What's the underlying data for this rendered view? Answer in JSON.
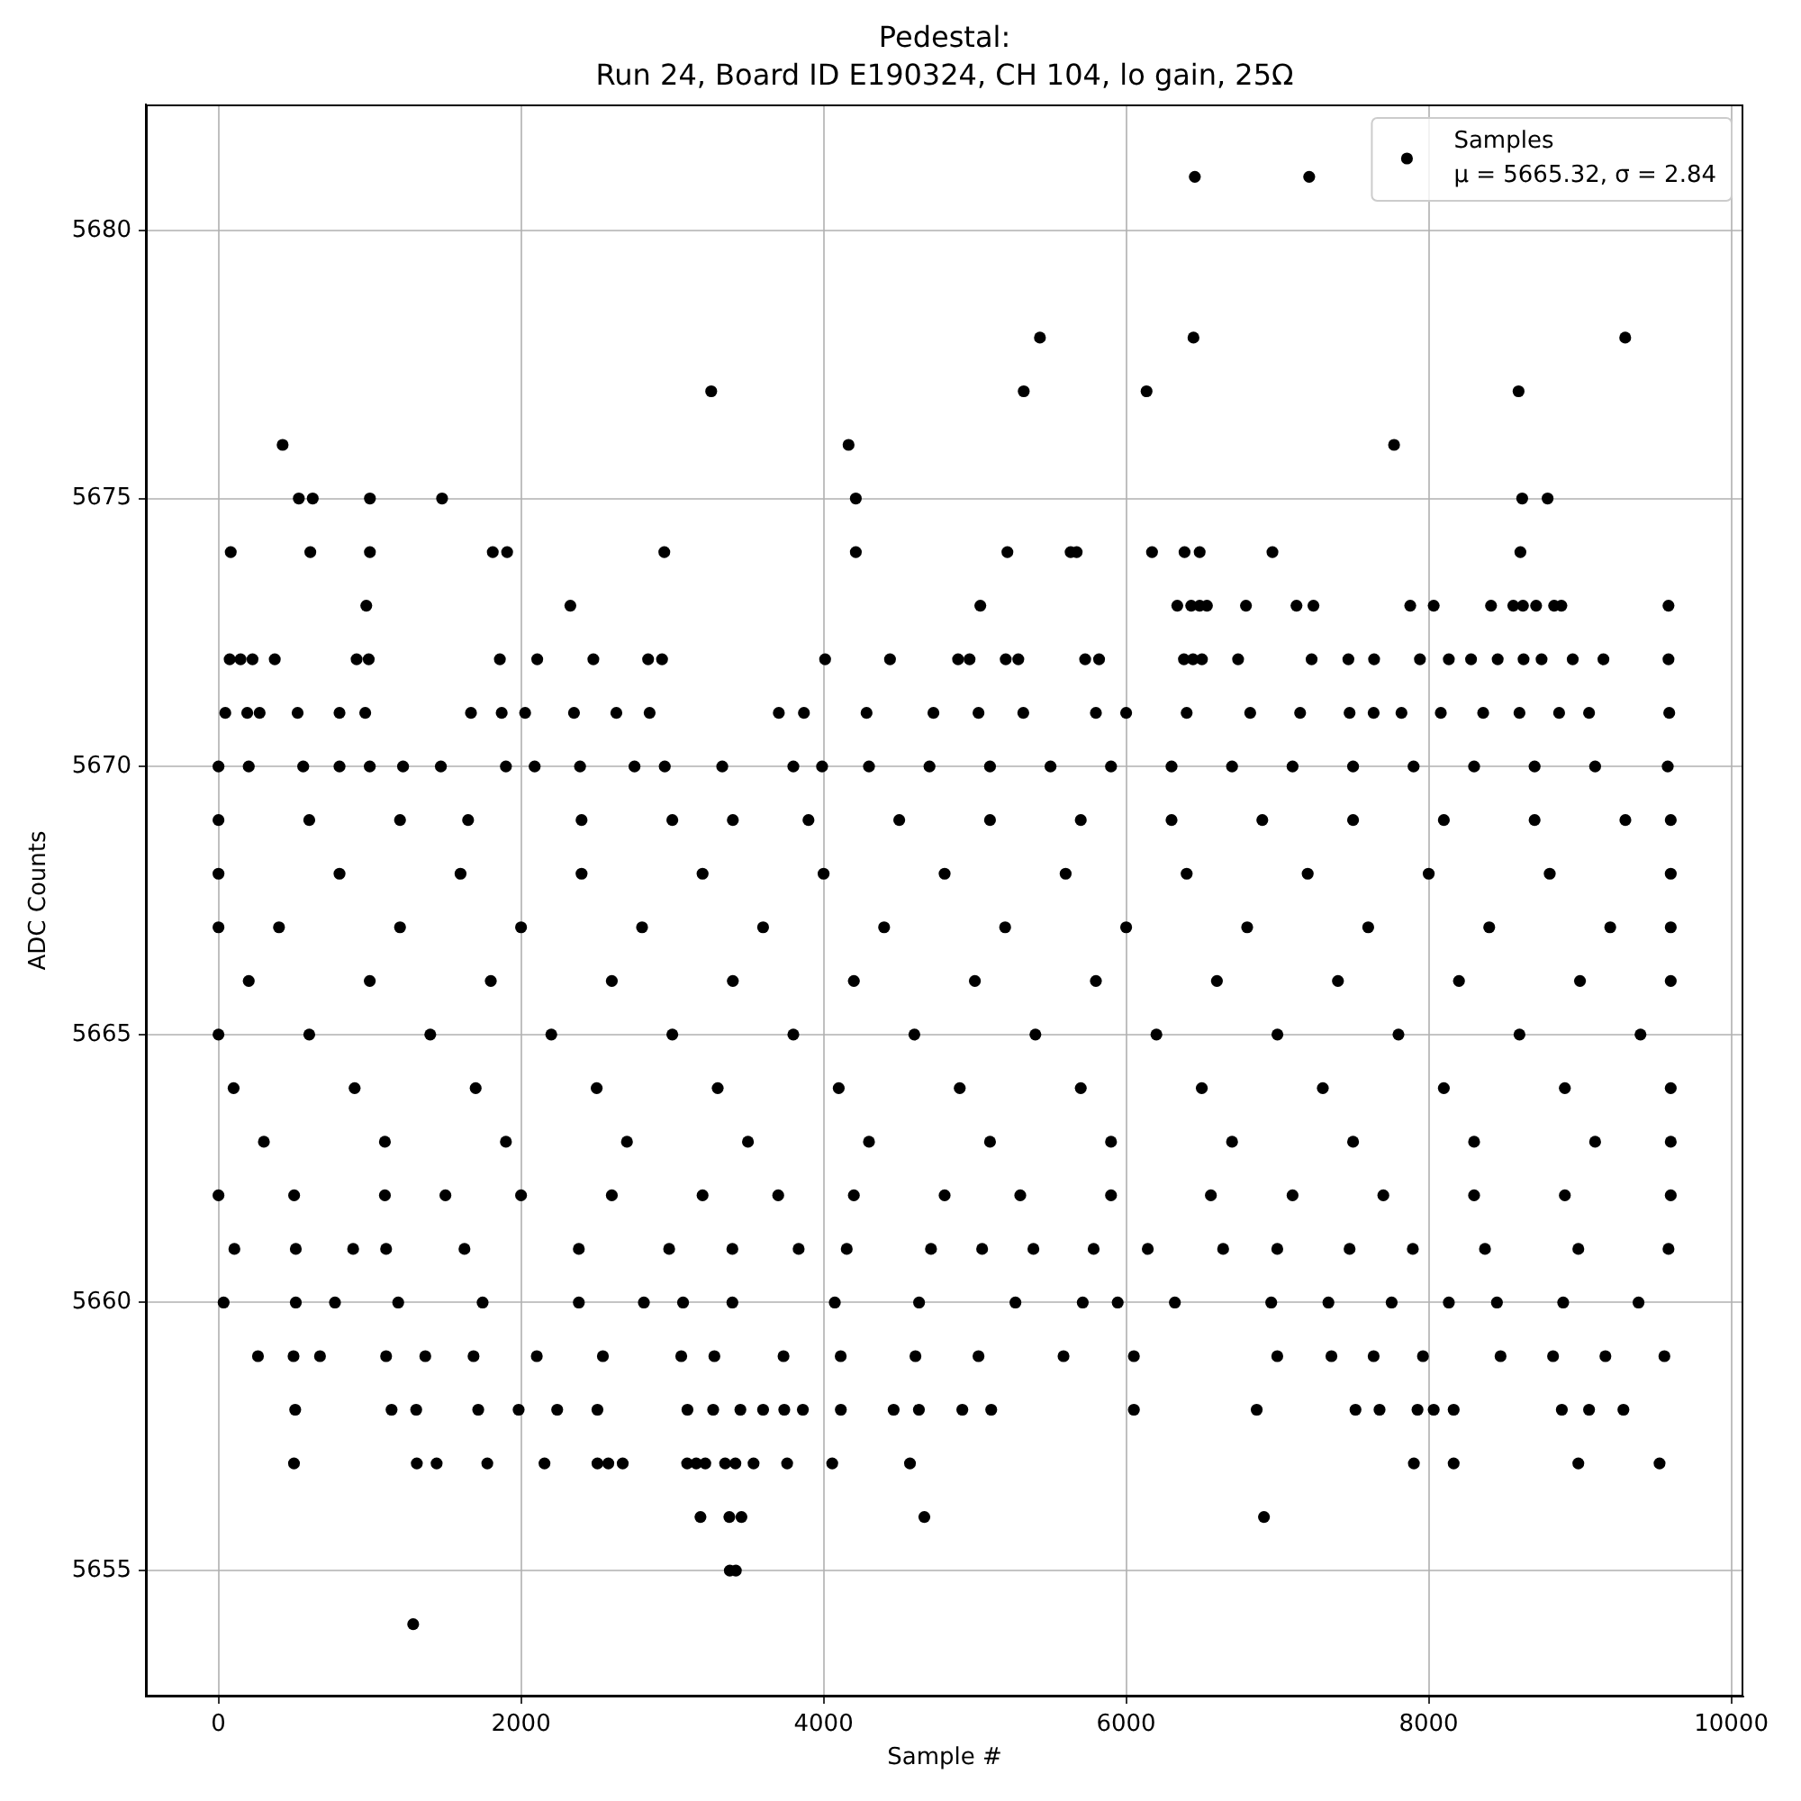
{
  "chart_data": {
    "type": "scatter",
    "title": "Pedestal:\nRun 24, Board ID E190324, CH 104, lo gain, 25Ω",
    "xlabel": "Sample #",
    "ylabel": "ADC Counts",
    "xlim": [
      -480,
      10080
    ],
    "ylim": [
      5652.65,
      5682.35
    ],
    "xticks": [
      0,
      2000,
      4000,
      6000,
      8000,
      10000
    ],
    "yticks": [
      5655,
      5660,
      5665,
      5670,
      5675,
      5680
    ],
    "grid": true,
    "legend": "top right",
    "marker": "circle",
    "series": [
      {
        "name": "Samples\nμ = 5665.32, σ = 2.84",
        "color": "#000000",
        "x": [
          6454,
          7210,
          5430,
          6445,
          9299,
          3257,
          5323,
          6135,
          8594,
          424,
          4165,
          7771,
          531,
          623,
          1001,
          1478,
          4213,
          8618,
          8786,
          81,
          607,
          1001,
          1813,
          1908,
          2947,
          4213,
          5215,
          5633,
          5673,
          6171,
          6386,
          6486,
          6967,
          8606,
          977,
          2326,
          5036,
          6338,
          6430,
          6486,
          6534,
          6792,
          7126,
          7238,
          7878,
          8033,
          8412,
          8559,
          8623,
          8710,
          8829,
          8877,
          9585,
          74,
          146,
          225,
          372,
          913,
          993,
          1860,
          2107,
          2478,
          2840,
          2932,
          4010,
          4439,
          4889,
          4965,
          5204,
          5287,
          5729,
          5821,
          6382,
          6442,
          6501,
          6740,
          7226,
          7469,
          7639,
          7942,
          8133,
          8280,
          8456,
          8627,
          8746,
          8952,
          9155,
          9585,
          45,
          190,
          272,
          523,
          800,
          970,
          1669,
          1872,
          2027,
          2350,
          2630,
          2850,
          3704,
          3870,
          4284,
          4726,
          5024,
          5320,
          5800,
          6000,
          6400,
          6820,
          7150,
          7477,
          7636,
          7820,
          8080,
          8360,
          8600,
          8862,
          9060,
          9590,
          0,
          200,
          560,
          800,
          1000,
          1220,
          1470,
          1900,
          2090,
          2390,
          2750,
          2950,
          3330,
          3800,
          3990,
          4300,
          4700,
          5100,
          5500,
          5900,
          6300,
          6700,
          7100,
          7500,
          7900,
          8300,
          8700,
          9100,
          9580,
          0,
          600,
          1200,
          1650,
          2400,
          3000,
          3400,
          3900,
          4500,
          5100,
          5700,
          6300,
          6900,
          7500,
          8100,
          8700,
          9300,
          9600,
          0,
          800,
          1600,
          2400,
          3200,
          4000,
          4800,
          5600,
          6400,
          7200,
          8000,
          8800,
          9600,
          0,
          400,
          1200,
          2000,
          2800,
          3600,
          4400,
          5200,
          6000,
          6800,
          7600,
          8400,
          9200,
          9600,
          200,
          1000,
          1800,
          2600,
          3400,
          4200,
          5000,
          5800,
          6600,
          7400,
          8200,
          9000,
          9600,
          0,
          600,
          1400,
          2200,
          3000,
          3800,
          4600,
          5400,
          6200,
          7000,
          7800,
          8600,
          9400,
          100,
          900,
          1700,
          2500,
          3300,
          4100,
          4900,
          5700,
          6500,
          7300,
          8100,
          8900,
          9600,
          300,
          1100,
          1900,
          2700,
          3500,
          4300,
          5100,
          5900,
          6700,
          7500,
          8300,
          9100,
          9600,
          0,
          500,
          1100,
          1500,
          2000,
          2600,
          3200,
          3700,
          4200,
          4800,
          5300,
          5900,
          6560,
          7100,
          7700,
          8300,
          8900,
          9600,
          105,
          511,
          890,
          1108,
          1626,
          2382,
          2979,
          3397,
          3835,
          4153,
          4710,
          5048,
          5387,
          5785,
          6143,
          6641,
          6999,
          7477,
          7895,
          8372,
          8989,
          9585,
          34,
          511,
          770,
          1188,
          1746,
          2382,
          2812,
          3071,
          3397,
          4074,
          4631,
          5268,
          5713,
          5944,
          6322,
          6959,
          7337,
          7755,
          8133,
          8451,
          8889,
          9387,
          261,
          496,
          671,
          1108,
          1367,
          1686,
          2104,
          2541,
          3059,
          3278,
          3735,
          4113,
          4607,
          5024,
          5586,
          6051,
          6999,
          7357,
          7636,
          7962,
          8475,
          8822,
          9168,
          9558,
          507,
          1144,
          1307,
          1717,
          1984,
          2239,
          2505,
          3100,
          3270,
          3450,
          3600,
          3740,
          3863,
          4114,
          4463,
          4630,
          4917,
          5108,
          6051,
          6863,
          7516,
          7675,
          7926,
          8033,
          8165,
          8880,
          9060,
          9287,
          499,
          1311,
          1442,
          1777,
          2155,
          2505,
          2577,
          2672,
          3098,
          3158,
          3218,
          3349,
          3417,
          3537,
          3759,
          4057,
          4571,
          7902,
          8165,
          8989,
          9526,
          3186,
          3377,
          3457,
          4666,
          6911,
          3380,
          3420,
          1287
        ],
        "values": [
          5681,
          5681,
          5678,
          5678,
          5678,
          5677,
          5677,
          5677,
          5677,
          5676,
          5676,
          5676,
          5675,
          5675,
          5675,
          5675,
          5675,
          5675,
          5675,
          5674,
          5674,
          5674,
          5674,
          5674,
          5674,
          5674,
          5674,
          5674,
          5674,
          5674,
          5674,
          5674,
          5674,
          5674,
          5673,
          5673,
          5673,
          5673,
          5673,
          5673,
          5673,
          5673,
          5673,
          5673,
          5673,
          5673,
          5673,
          5673,
          5673,
          5673,
          5673,
          5673,
          5673,
          5672,
          5672,
          5672,
          5672,
          5672,
          5672,
          5672,
          5672,
          5672,
          5672,
          5672,
          5672,
          5672,
          5672,
          5672,
          5672,
          5672,
          5672,
          5672,
          5672,
          5672,
          5672,
          5672,
          5672,
          5672,
          5672,
          5672,
          5672,
          5672,
          5672,
          5672,
          5672,
          5672,
          5672,
          5672,
          5671,
          5671,
          5671,
          5671,
          5671,
          5671,
          5671,
          5671,
          5671,
          5671,
          5671,
          5671,
          5671,
          5671,
          5671,
          5671,
          5671,
          5671,
          5671,
          5671,
          5671,
          5671,
          5671,
          5671,
          5671,
          5671,
          5671,
          5671,
          5671,
          5671,
          5671,
          5671,
          5670,
          5670,
          5670,
          5670,
          5670,
          5670,
          5670,
          5670,
          5670,
          5670,
          5670,
          5670,
          5670,
          5670,
          5670,
          5670,
          5670,
          5670,
          5670,
          5670,
          5670,
          5670,
          5670,
          5670,
          5670,
          5670,
          5670,
          5670,
          5670,
          5669,
          5669,
          5669,
          5669,
          5669,
          5669,
          5669,
          5669,
          5669,
          5669,
          5669,
          5669,
          5669,
          5669,
          5669,
          5669,
          5669,
          5669,
          5668,
          5668,
          5668,
          5668,
          5668,
          5668,
          5668,
          5668,
          5668,
          5668,
          5668,
          5668,
          5668,
          5667,
          5667,
          5667,
          5667,
          5667,
          5667,
          5667,
          5667,
          5667,
          5667,
          5667,
          5667,
          5667,
          5667,
          5666,
          5666,
          5666,
          5666,
          5666,
          5666,
          5666,
          5666,
          5666,
          5666,
          5666,
          5666,
          5666,
          5665,
          5665,
          5665,
          5665,
          5665,
          5665,
          5665,
          5665,
          5665,
          5665,
          5665,
          5665,
          5665,
          5664,
          5664,
          5664,
          5664,
          5664,
          5664,
          5664,
          5664,
          5664,
          5664,
          5664,
          5664,
          5664,
          5663,
          5663,
          5663,
          5663,
          5663,
          5663,
          5663,
          5663,
          5663,
          5663,
          5663,
          5663,
          5663,
          5662,
          5662,
          5662,
          5662,
          5662,
          5662,
          5662,
          5662,
          5662,
          5662,
          5662,
          5662,
          5662,
          5662,
          5662,
          5662,
          5662,
          5662,
          5661,
          5661,
          5661,
          5661,
          5661,
          5661,
          5661,
          5661,
          5661,
          5661,
          5661,
          5661,
          5661,
          5661,
          5661,
          5661,
          5661,
          5661,
          5661,
          5661,
          5661,
          5661,
          5660,
          5660,
          5660,
          5660,
          5660,
          5660,
          5660,
          5660,
          5660,
          5660,
          5660,
          5660,
          5660,
          5660,
          5660,
          5660,
          5660,
          5660,
          5660,
          5660,
          5660,
          5660,
          5659,
          5659,
          5659,
          5659,
          5659,
          5659,
          5659,
          5659,
          5659,
          5659,
          5659,
          5659,
          5659,
          5659,
          5659,
          5659,
          5659,
          5659,
          5659,
          5659,
          5659,
          5659,
          5659,
          5659,
          5658,
          5658,
          5658,
          5658,
          5658,
          5658,
          5658,
          5658,
          5658,
          5658,
          5658,
          5658,
          5658,
          5658,
          5658,
          5658,
          5658,
          5658,
          5658,
          5658,
          5658,
          5658,
          5658,
          5658,
          5658,
          5658,
          5658,
          5658,
          5657,
          5657,
          5657,
          5657,
          5657,
          5657,
          5657,
          5657,
          5657,
          5657,
          5657,
          5657,
          5657,
          5657,
          5657,
          5657,
          5657,
          5657,
          5657,
          5657,
          5657,
          5656,
          5656,
          5656,
          5656,
          5656,
          5655,
          5655,
          5654
        ]
      }
    ]
  }
}
